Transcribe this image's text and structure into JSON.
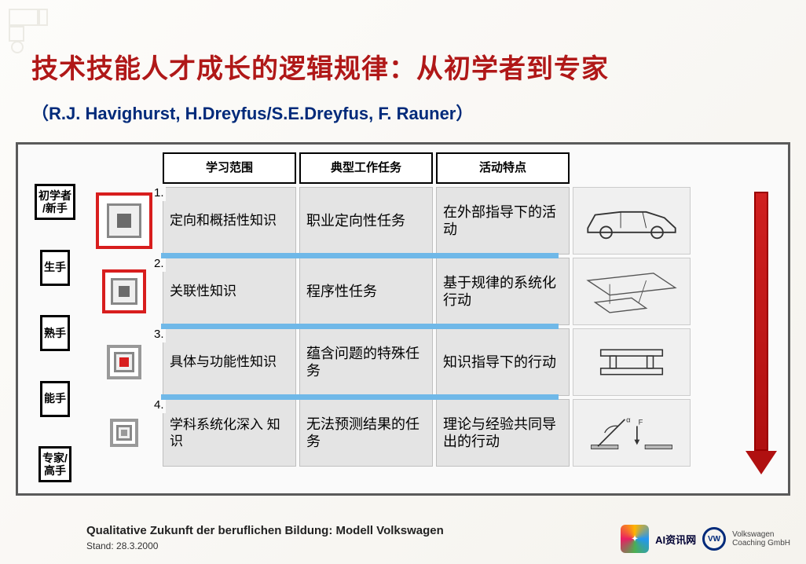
{
  "title": "技术技能人才成长的逻辑规律：从初学者到专家",
  "title_color": "#b01818",
  "title_fontsize": 34,
  "subtitle": "（R.J. Havighurst, H.Dreyfus/S.E.Dreyfus, F. Rauner）",
  "subtitle_color": "#002a7a",
  "subtitle_fontsize": 22,
  "columns": [
    "学习范围",
    "典型工作任务",
    "活动特点"
  ],
  "stage_labels": [
    "初学者\n/新手",
    "生手",
    "熟手",
    "能手",
    "专家/\n高手"
  ],
  "rows": [
    {
      "num": "1.",
      "col1": "定向和概括性知识",
      "col2": "职业定向性任务",
      "col3": "在外部指导下的活动",
      "icon_outer": "#d81e1e",
      "icon_core": "#6b6b6b",
      "icon_size": 1,
      "illustration": "car-outline"
    },
    {
      "num": "2.",
      "col1": "关联性知识",
      "col2": "程序性任务",
      "col3": "基于规律的系统化行动",
      "icon_outer": "#d81e1e",
      "icon_core": "#6b6b6b",
      "icon_size": 2,
      "illustration": "chassis-parts"
    },
    {
      "num": "3.",
      "col1": "具体与功能性知识",
      "col2": "蕴含问题的特殊任务",
      "col3": "知识指导下的行动",
      "icon_outer": "#999999",
      "icon_core": "#d81e1e",
      "icon_size": 3,
      "illustration": "press-die"
    },
    {
      "num": "4.",
      "col1": "学科系统化深入 知识",
      "col2": "无法预测结果的任务",
      "col3": "理论与经验共同导出的行动",
      "icon_outer": "#999999",
      "icon_core": "#999999",
      "icon_size": 4,
      "illustration": "torque-diagram"
    }
  ],
  "divider_color": "#6fb8e8",
  "footer_citation": "Qualitative Zukunft der beruflichen Bildung: Modell Volkswagen",
  "footer_date": "Stand: 28.3.2000",
  "logo_ai_text": "AI资讯网",
  "logo_vw_line1": "Volkswagen",
  "logo_vw_line2": "Coaching GmbH",
  "arrow_color": "#b01010",
  "background": "#fdfcfa",
  "frame_border_color": "#5a5a5a"
}
